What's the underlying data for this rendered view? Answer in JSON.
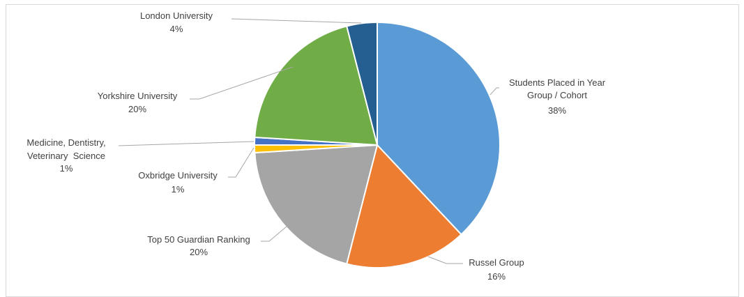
{
  "chart_data": {
    "type": "pie",
    "title": "",
    "slices": [
      {
        "label_lines": [
          "Students Placed in Year",
          "Group / Cohort"
        ],
        "percent_label": "38%",
        "value": 38,
        "color": "#5b9bd5"
      },
      {
        "label_lines": [
          "Russel Group"
        ],
        "percent_label": "16%",
        "value": 16,
        "color": "#ed7d31"
      },
      {
        "label_lines": [
          "Top 50 Guardian Ranking"
        ],
        "percent_label": "20%",
        "value": 20,
        "color": "#a5a5a5"
      },
      {
        "label_lines": [
          "Oxbridge University"
        ],
        "percent_label": "1%",
        "value": 1,
        "color": "#ffc000"
      },
      {
        "label_lines": [
          "Medicine, Dentistry,",
          "Veterinary  Science"
        ],
        "percent_label": "1%",
        "value": 1,
        "color": "#4472c4"
      },
      {
        "label_lines": [
          "Yorkshire University"
        ],
        "percent_label": "20%",
        "value": 20,
        "color": "#70ad47"
      },
      {
        "label_lines": [
          "London University"
        ],
        "percent_label": "4%",
        "value": 4,
        "color": "#255e91"
      }
    ]
  }
}
